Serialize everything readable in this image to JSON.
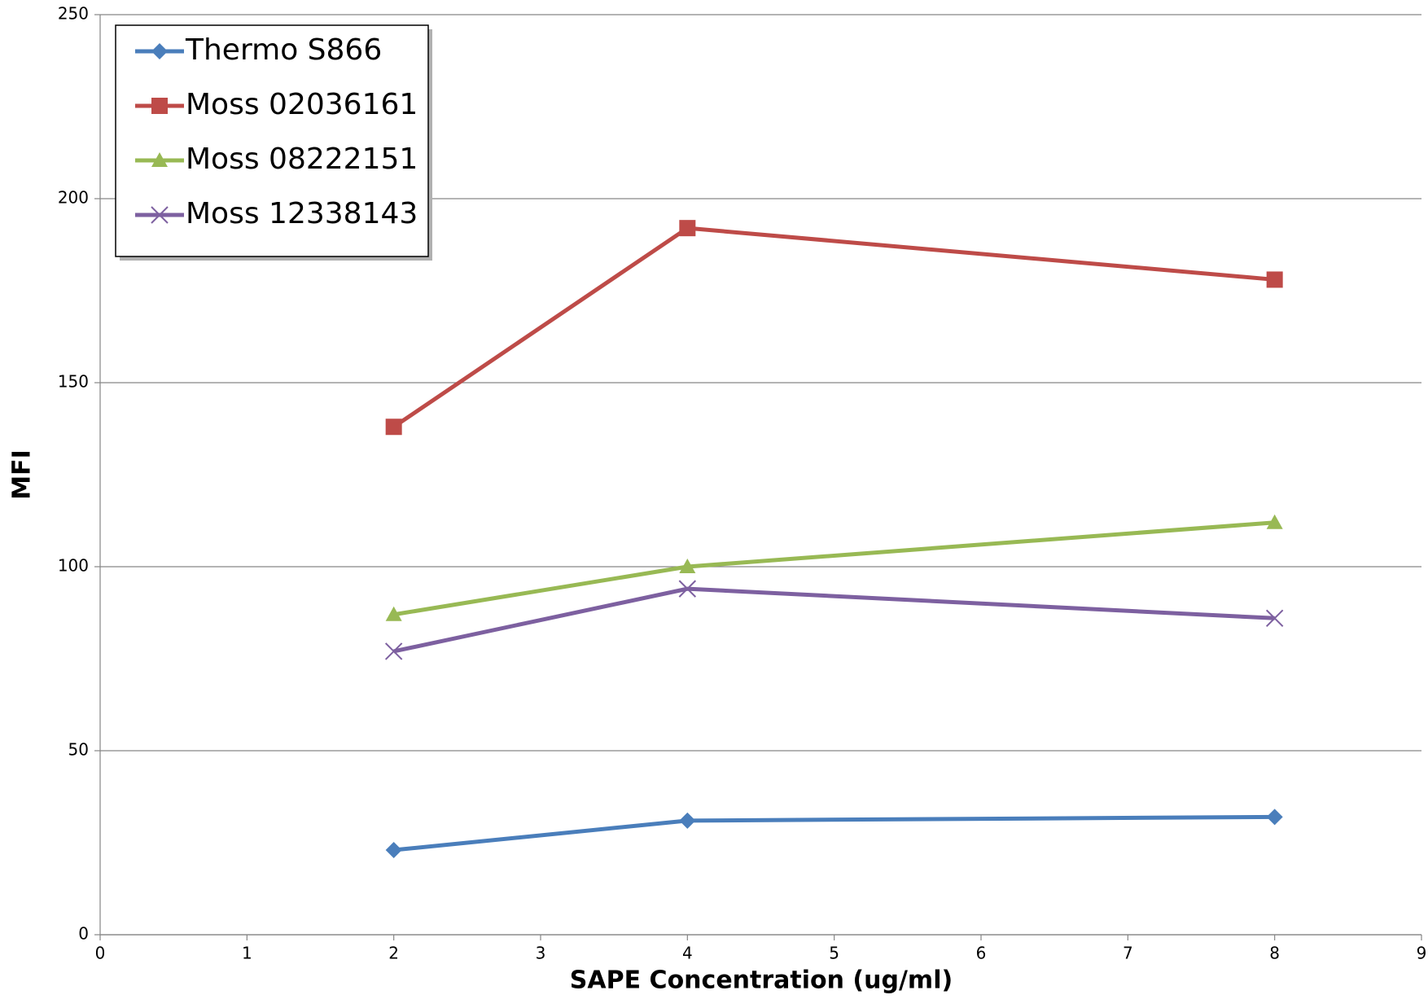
{
  "chart_data": {
    "type": "line",
    "x_label": "SAPE Concentration (ug/ml)",
    "y_label": "MFI",
    "x": [
      2,
      4,
      8
    ],
    "series": [
      {
        "name": "Thermo S866",
        "color": "#4a7ebb",
        "marker": "diamond",
        "values": [
          23,
          31,
          32
        ]
      },
      {
        "name": "Moss 02036161",
        "color": "#be4b48",
        "marker": "square",
        "values": [
          138,
          192,
          178
        ]
      },
      {
        "name": "Moss 08222151",
        "color": "#98b954",
        "marker": "triangle",
        "values": [
          87,
          100,
          112
        ]
      },
      {
        "name": "Moss 12338143",
        "color": "#7d60a0",
        "marker": "x",
        "values": [
          77,
          94,
          86
        ]
      }
    ],
    "xlim": [
      0,
      9
    ],
    "xticks": [
      0,
      1,
      2,
      3,
      4,
      5,
      6,
      7,
      8,
      9
    ],
    "ylim": [
      0,
      250
    ],
    "yticks": [
      0,
      50,
      100,
      150,
      200,
      250
    ],
    "grid": true,
    "legend": "top-left"
  }
}
